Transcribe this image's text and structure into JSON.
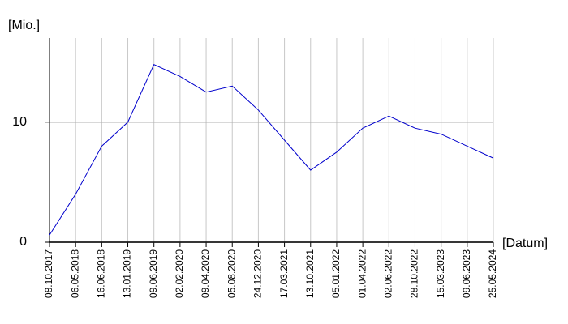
{
  "chart_data": {
    "type": "line",
    "y_label": "[Mio.]",
    "x_label": "[Datum]",
    "categories": [
      "08.10.2017",
      "06.05.2018",
      "16.06.2018",
      "13.01.2019",
      "09.06.2019",
      "02.02.2020",
      "09.04.2020",
      "05.08.2020",
      "24.12.2020",
      "17.03.2021",
      "13.10.2021",
      "05.01.2022",
      "01.04.2022",
      "02.06.2022",
      "28.10.2022",
      "15.03.2023",
      "09.06.2023",
      "25.05.2024"
    ],
    "series": [
      {
        "color": "#0000cc",
        "values": [
          0.6,
          4,
          8,
          10,
          14.8,
          13.8,
          12.5,
          13,
          11,
          8.5,
          6,
          7.5,
          9.5,
          10.5,
          9.5,
          9,
          8,
          7
        ]
      }
    ],
    "ylim": [
      0,
      17
    ],
    "yticks": [
      0,
      10
    ],
    "grid": true
  }
}
